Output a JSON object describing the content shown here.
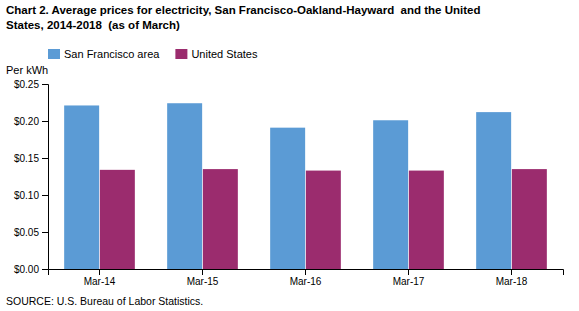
{
  "chart_data": {
    "type": "bar",
    "title": "Chart 2. Average prices for electricity, San Francisco-Oakland-Hayward  and the United",
    "subtitle": "States, 2014-2018  (as of March)",
    "ylabel": "Per kWh",
    "annotations": [
      "SOURCE: U.S. Bureau of Labor Statistics."
    ],
    "categories": [
      "Mar-14",
      "Mar-15",
      "Mar-16",
      "Mar-17",
      "Mar-18"
    ],
    "series": [
      {
        "name": "San Francisco area",
        "color": "#5B9BD5",
        "values": [
          0.221,
          0.224,
          0.191,
          0.201,
          0.212
        ]
      },
      {
        "name": "United States",
        "color": "#9B2C6E",
        "values": [
          0.134,
          0.135,
          0.133,
          0.133,
          0.135
        ]
      }
    ],
    "ylim": [
      0.0,
      0.25
    ],
    "yticks": [
      {
        "value": 0.0,
        "label": "$0.00"
      },
      {
        "value": 0.05,
        "label": "$0.05"
      },
      {
        "value": 0.1,
        "label": "$0.10"
      },
      {
        "value": 0.15,
        "label": "$0.15"
      },
      {
        "value": 0.2,
        "label": "$0.20"
      },
      {
        "value": 0.25,
        "label": "$0.25"
      }
    ],
    "legend": "upper left",
    "grid": false
  }
}
